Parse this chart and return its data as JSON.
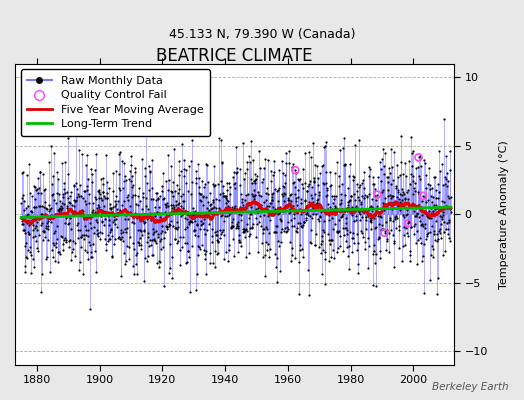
{
  "title": "BEATRICE CLIMATE",
  "subtitle": "45.133 N, 79.390 W (Canada)",
  "ylabel": "Temperature Anomaly (°C)",
  "watermark": "Berkeley Earth",
  "xlim": [
    1873,
    2013
  ],
  "ylim": [
    -11,
    11
  ],
  "yticks": [
    -10,
    -5,
    0,
    5,
    10
  ],
  "xticks": [
    1880,
    1900,
    1920,
    1940,
    1960,
    1980,
    2000
  ],
  "year_start": 1875,
  "year_end": 2012,
  "months": 12,
  "seed": 42,
  "bg_color": "#e8e8e8",
  "plot_bg_color": "#ffffff",
  "raw_line_color": "#7777ff",
  "raw_marker_color": "#000000",
  "moving_avg_color": "#dd0000",
  "trend_color": "#00bb00",
  "qc_fail_color": "#ff44ff",
  "legend_fontsize": 8,
  "title_fontsize": 12,
  "subtitle_fontsize": 9,
  "noise_std": 2.1,
  "n_qc_fail": 6
}
